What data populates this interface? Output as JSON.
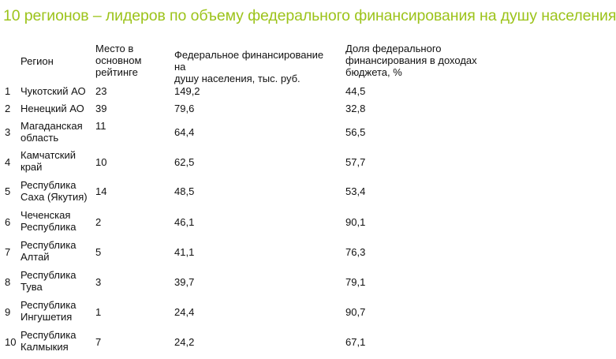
{
  "title": "10 регионов – лидеров по объему федерального финансирования на душу населения",
  "headers": {
    "region": "Регион",
    "place_line1": "Место в",
    "place_line2": "основном",
    "place_line3": "рейтинге",
    "fed_line1": "Федеральное финансирование на",
    "fed_line2": "душу населения, тыс. руб.",
    "share_line1": "Доля федерального",
    "share_line2": "финансирования в доходах",
    "share_line3": "бюджета, %"
  },
  "rows": [
    {
      "num": "1",
      "region_l1": "Чукотский АО",
      "region_l2": "",
      "place": "23",
      "fed": "149,2",
      "share": "44,5"
    },
    {
      "num": "2",
      "region_l1": "Ненецкий АО",
      "region_l2": "",
      "place": "39",
      "fed": "79,6",
      "share": "32,8"
    },
    {
      "num": "3",
      "region_l1": "Магаданская",
      "region_l2": "область",
      "place": "11",
      "fed": "64,4",
      "share": "56,5"
    },
    {
      "num": "4",
      "region_l1": "Камчатский",
      "region_l2": "край",
      "place": "10",
      "fed": "62,5",
      "share": "57,7"
    },
    {
      "num": "5",
      "region_l1": "Республика",
      "region_l2": "Саха (Якутия)",
      "place": "14",
      "fed": "48,5",
      "share": "53,4"
    },
    {
      "num": "6",
      "region_l1": "Чеченская",
      "region_l2": "Республика",
      "place": "2",
      "fed": "46,1",
      "share": "90,1"
    },
    {
      "num": "7",
      "region_l1": "Республика",
      "region_l2": "Алтай",
      "place": "5",
      "fed": "41,1",
      "share": "76,3"
    },
    {
      "num": "8",
      "region_l1": "Республика",
      "region_l2": "Тува",
      "place": "3",
      "fed": "39,7",
      "share": "79,1"
    },
    {
      "num": "9",
      "region_l1": "Республика",
      "region_l2": "Ингушетия",
      "place": "1",
      "fed": "24,4",
      "share": "90,7"
    },
    {
      "num": "10",
      "region_l1": "Республика",
      "region_l2": "Калмыкия",
      "place": "7",
      "fed": "24,2",
      "share": "67,1"
    }
  ]
}
